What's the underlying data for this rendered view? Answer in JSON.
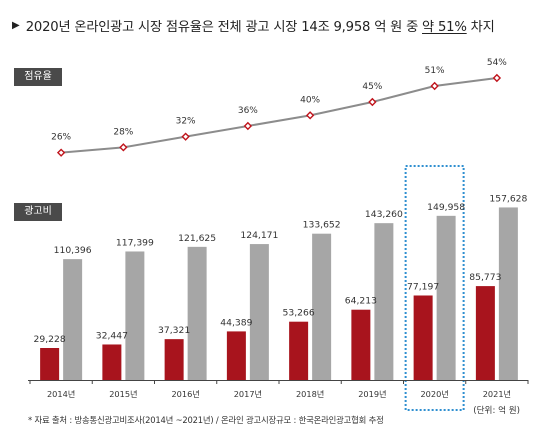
{
  "heading": {
    "marker": "▶",
    "text_before": "2020년 온라인광고 시장 점유율은 전체 광고 시장 14조 9,958 억 원 중",
    "text_highlight": "약 51%",
    "text_after": "차지"
  },
  "sections": {
    "share_label": "점유율",
    "adspend_label": "광고비"
  },
  "unit_note": "(단위: 억 원)",
  "footnote": "* 자료 출처 : 방송통신광고비조사(2014년 ~2021년) / 온라인 광고시장규모 : 한국온라인광고협회 추정",
  "colors": {
    "online_bar": "#a8141d",
    "total_bar": "#a6a6a6",
    "share_line": "#8c8c8c",
    "share_marker": "#c0141c",
    "highlight_box": "#2f8fd0",
    "section_label_bg": "#4a4a4a"
  },
  "highlighted_year": "2020년",
  "chart_data": [
    {
      "type": "line",
      "title": "점유율",
      "categories": [
        "2014년",
        "2015년",
        "2016년",
        "2017년",
        "2018년",
        "2019년",
        "2020년",
        "2021년"
      ],
      "series": [
        {
          "values": [
            26,
            28,
            32,
            36,
            40,
            45,
            51,
            54
          ],
          "labels": [
            "26%",
            "28%",
            "32%",
            "36%",
            "40%",
            "45%",
            "51%",
            "54%"
          ]
        }
      ],
      "ylim": [
        15,
        60
      ],
      "grid": false,
      "legend": "none"
    },
    {
      "type": "bar",
      "title": "광고비",
      "categories": [
        "2014년",
        "2015년",
        "2016년",
        "2017년",
        "2018년",
        "2019년",
        "2020년",
        "2021년"
      ],
      "series": [
        {
          "values": [
            29228,
            32447,
            37321,
            44389,
            53266,
            64213,
            77197,
            85773
          ],
          "labels": [
            "29,228",
            "32,447",
            "37,321",
            "44,389",
            "53,266",
            "64,213",
            "77,197",
            "85,773"
          ]
        },
        {
          "values": [
            110396,
            117399,
            121625,
            124171,
            133652,
            143260,
            149958,
            157628
          ],
          "labels": [
            "110,396",
            "117,399",
            "121,625",
            "124,171",
            "133,652",
            "143,260",
            "149,958",
            "157,628"
          ]
        }
      ],
      "ylim": [
        0,
        190000
      ],
      "unit": "억 원",
      "grid": false,
      "legend": "none"
    }
  ]
}
